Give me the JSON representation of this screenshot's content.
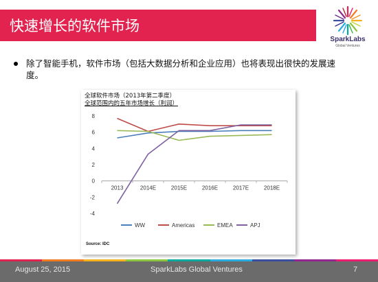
{
  "slide": {
    "title": "快速增长的软件市场",
    "bullet": "除了智能手机，软件市场（包括大数据分析和企业应用）也将表现出很快的发展速度。"
  },
  "logo": {
    "name": "SparkLabs",
    "sub": "Global Ventures"
  },
  "chart": {
    "title_line1": "全球软件市场（2013年第二季度）",
    "title_line2": "全球范围内的五年市场增长（利润）",
    "source": "Source: IDC"
  },
  "chart_data": {
    "type": "line",
    "categories": [
      "2013",
      "2014E",
      "2015E",
      "2016E",
      "2017E",
      "2018E"
    ],
    "series": [
      {
        "name": "WW",
        "color": "#4a7ebb",
        "values": [
          5.3,
          5.9,
          6.1,
          6.1,
          6.2,
          6.2
        ]
      },
      {
        "name": "Americas",
        "color": "#be4b48",
        "values": [
          7.7,
          6.1,
          7.0,
          6.8,
          6.8,
          6.8
        ]
      },
      {
        "name": "EMEA",
        "color": "#98b954",
        "values": [
          6.2,
          6.1,
          5.0,
          5.5,
          5.6,
          5.7
        ]
      },
      {
        "name": "APJ",
        "color": "#7d60a0",
        "values": [
          -2.8,
          3.3,
          6.2,
          6.2,
          6.9,
          6.9
        ]
      }
    ],
    "yticks": [
      8,
      6,
      4,
      2,
      0,
      -2,
      -4
    ],
    "ylim": [
      -4,
      8
    ],
    "grid": false,
    "legend": "bottom"
  },
  "footer": {
    "date": "August 25, 2015",
    "company": "SparkLabs Global Ventures",
    "page": "7"
  },
  "colors": {
    "accent": "#e2234f",
    "footer": "#6b6b6b"
  }
}
